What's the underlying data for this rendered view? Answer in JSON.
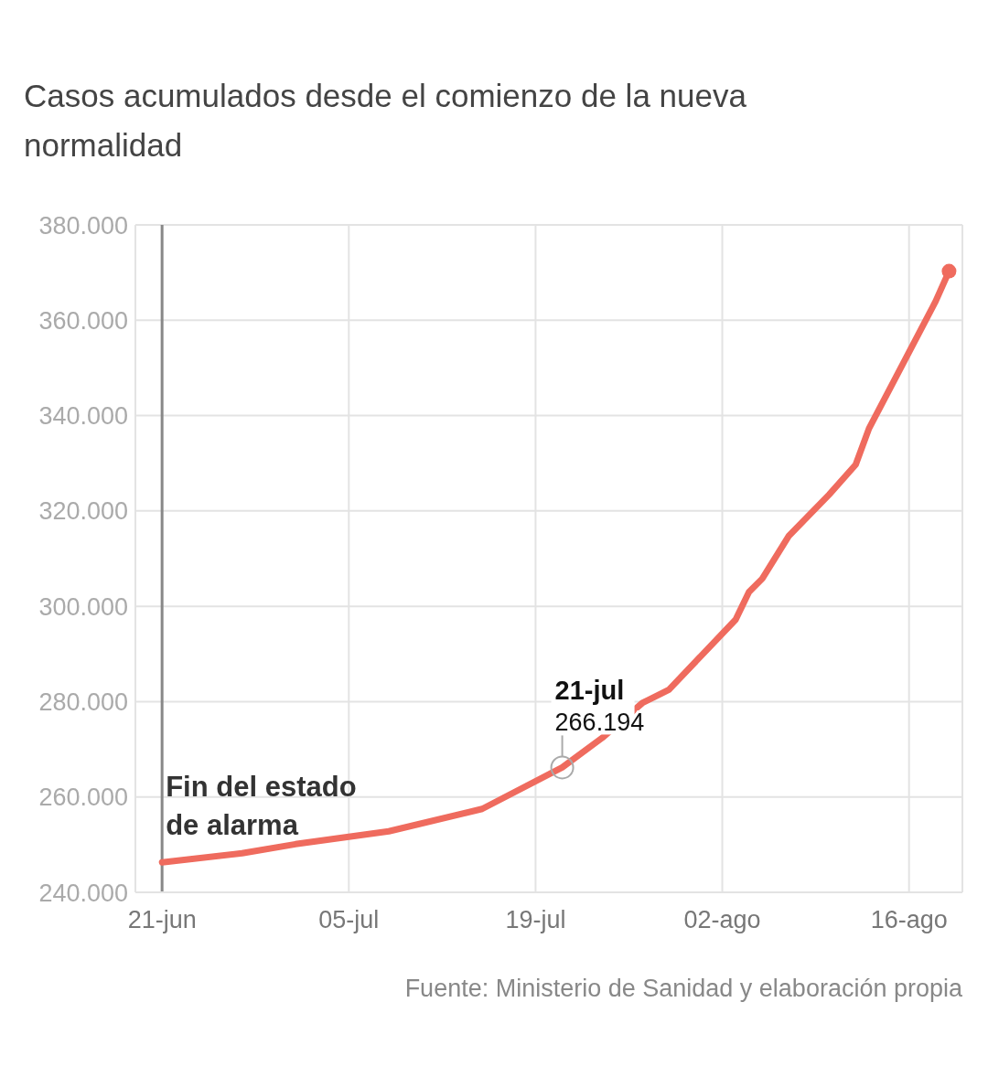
{
  "chart_data": {
    "type": "line",
    "title": "Casos acumulados desde el comienzo de la nueva normalidad",
    "x": [
      "--06-21",
      "--06-27",
      "--07-01",
      "--07-08",
      "--07-15",
      "--07-21",
      "--07-24",
      "--07-27",
      "--07-29",
      "--08-03",
      "--08-04",
      "--08-05",
      "--08-07",
      "--08-10",
      "--08-12",
      "--08-13",
      "--08-18",
      "--08-19"
    ],
    "series": [
      {
        "color": "#ef6b5e",
        "values": [
          246300,
          248200,
          250100,
          252800,
          257500,
          266194,
          272400,
          279700,
          282500,
          297200,
          303000,
          305800,
          314800,
          323400,
          329700,
          337300,
          364000,
          370300
        ]
      }
    ],
    "xlim": [
      "--06-19",
      "--08-20"
    ],
    "xticks": [
      {
        "value": "--06-21",
        "label": "21-jun"
      },
      {
        "value": "--07-05",
        "label": "05-jul"
      },
      {
        "value": "--07-19",
        "label": "19-jul"
      },
      {
        "value": "--08-02",
        "label": "02-ago"
      },
      {
        "value": "--08-16",
        "label": "16-ago"
      }
    ],
    "ylim": [
      240000,
      380000
    ],
    "yticks": [
      {
        "value": 240000,
        "label": "240.000"
      },
      {
        "value": 260000,
        "label": "260.000"
      },
      {
        "value": 280000,
        "label": "280.000"
      },
      {
        "value": 300000,
        "label": "300.000"
      },
      {
        "value": 320000,
        "label": "320.000"
      },
      {
        "value": 340000,
        "label": "340.000"
      },
      {
        "value": 360000,
        "label": "360.000"
      },
      {
        "value": 380000,
        "label": "380.000"
      }
    ],
    "grid": true,
    "marker": "none",
    "line_style": "solid",
    "ref_lines": [
      {
        "axis": "x",
        "value": "--06-21",
        "label": "Fin del estado de alarma",
        "color": "#888888"
      }
    ],
    "annotations": [
      {
        "text": "21-jul",
        "x": "--07-21",
        "y": 266194
      },
      {
        "text": "266.194",
        "x": "--07-21",
        "y": 266194
      },
      "Fuente: Ministerio de Sanidad y elaboración propia"
    ]
  }
}
